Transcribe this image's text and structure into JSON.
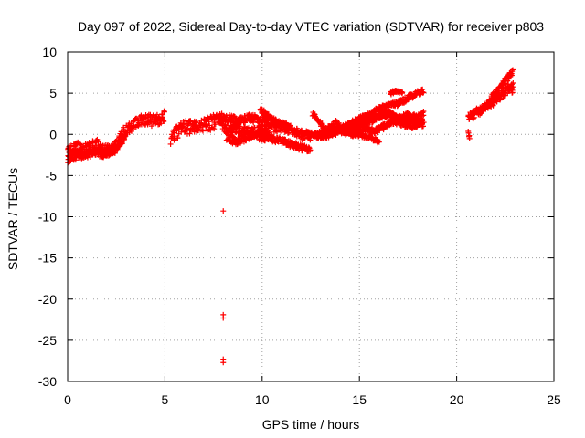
{
  "chart_data": {
    "type": "scatter",
    "title": "Day 097 of 2022, Sidereal Day-to-day VTEC variation (SDTVAR) for receiver p803",
    "xlabel": "GPS time / hours",
    "ylabel": "SDTVAR / TECUs",
    "xlim": [
      0,
      25
    ],
    "ylim": [
      -30,
      10
    ],
    "xticks": [
      0,
      5,
      10,
      15,
      20,
      25
    ],
    "yticks": [
      -30,
      -25,
      -20,
      -15,
      -10,
      -5,
      0,
      5,
      10
    ],
    "grid": true,
    "marker": "+",
    "marker_color": "#ff0000",
    "series": [
      {
        "name": "SDTVAR",
        "tracks": [
          {
            "x": [
              0.0,
              0.5,
              1.0,
              1.5,
              2.0,
              2.4,
              2.8,
              3.2,
              3.6,
              4.0,
              4.5,
              5.0
            ],
            "y": [
              -2.0,
              -1.6,
              -1.8,
              -1.2,
              -2.0,
              -1.6,
              0.0,
              0.8,
              1.6,
              1.8,
              1.6,
              2.2
            ],
            "spread": 1.4
          },
          {
            "x": [
              0.0,
              0.5,
              1.0,
              1.5,
              2.0,
              2.5,
              3.0
            ],
            "y": [
              -3.0,
              -2.6,
              -2.4,
              -2.2,
              -2.4,
              -1.8,
              -0.5
            ],
            "spread": 0.9
          },
          {
            "x": [
              5.3,
              5.6,
              6.0,
              6.5,
              7.0,
              7.5,
              8.0
            ],
            "y": [
              -0.5,
              0.3,
              1.0,
              0.8,
              1.2,
              1.5,
              1.8
            ],
            "spread": 1.8
          },
          {
            "x": [
              7.8,
              8.3,
              8.8,
              9.3,
              9.8,
              10.3
            ],
            "y": [
              1.8,
              2.0,
              1.6,
              2.0,
              1.8,
              1.6
            ],
            "spread": 1.0
          },
          {
            "x": [
              8.0,
              8.5,
              9.0,
              9.5,
              10.0,
              10.5,
              11.0,
              11.5,
              12.0,
              12.5
            ],
            "y": [
              0.5,
              0.8,
              0.4,
              0.2,
              0.6,
              0.8,
              1.0,
              0.6,
              0.0,
              -0.2
            ],
            "spread": 1.2
          },
          {
            "x": [
              8.2,
              8.7,
              9.2,
              9.7,
              10.2
            ],
            "y": [
              -0.5,
              -0.8,
              -0.3,
              0.0,
              -0.5
            ],
            "spread": 1.0
          },
          {
            "x": [
              10.0,
              10.5,
              11.0,
              11.5,
              12.0,
              12.5
            ],
            "y": [
              0.0,
              -0.5,
              -0.8,
              -1.2,
              -1.6,
              -1.8
            ],
            "spread": 0.8
          },
          {
            "x": [
              9.9,
              10.4,
              10.9,
              11.4
            ],
            "y": [
              3.0,
              2.0,
              1.3,
              1.0
            ],
            "spread": 0.6
          },
          {
            "x": [
              12.5,
              13.0,
              13.5,
              14.0,
              14.5,
              15.0,
              15.5,
              16.0,
              16.5,
              17.0,
              17.5,
              18.0,
              18.3
            ],
            "y": [
              0.0,
              -0.2,
              0.2,
              0.6,
              1.2,
              1.8,
              2.4,
              3.0,
              3.4,
              3.8,
              4.4,
              5.0,
              5.2
            ],
            "spread": 0.7
          },
          {
            "x": [
              13.0,
              13.5,
              14.0,
              14.5,
              15.0,
              15.5,
              16.0,
              16.5,
              17.0,
              17.5,
              18.0,
              18.3
            ],
            "y": [
              -0.3,
              0.0,
              0.4,
              0.6,
              1.2,
              1.6,
              2.2,
              2.6,
              1.8,
              2.4,
              2.0,
              2.6
            ],
            "spread": 0.7
          },
          {
            "x": [
              12.8,
              13.3,
              13.8,
              14.3,
              14.8,
              15.3,
              15.8,
              16.3,
              16.8,
              17.3,
              17.8,
              18.3
            ],
            "y": [
              -0.2,
              0.5,
              1.4,
              0.2,
              0.4,
              0.6,
              0.4,
              1.0,
              1.6,
              1.2,
              1.0,
              1.6
            ],
            "spread": 0.7
          },
          {
            "x": [
              14.0,
              14.5,
              15.0,
              15.5,
              16.0,
              16.5,
              17.0,
              17.5,
              18.0,
              18.3
            ],
            "y": [
              0.5,
              1.0,
              1.5,
              1.8,
              2.2,
              2.4,
              2.0,
              1.6,
              1.4,
              1.2
            ],
            "spread": 0.6
          },
          {
            "x": [
              14.5,
              15.0,
              15.5,
              16.0
            ],
            "y": [
              0.0,
              0.0,
              -0.4,
              -0.8
            ],
            "spread": 0.5
          },
          {
            "x": [
              12.6,
              13.0,
              13.3
            ],
            "y": [
              2.5,
              1.3,
              0.4
            ],
            "spread": 0.4
          },
          {
            "x": [
              16.6,
              16.9,
              17.2
            ],
            "y": [
              5.0,
              5.3,
              5.0
            ],
            "spread": 0.3
          },
          {
            "x": [
              20.6,
              21.0,
              21.5,
              22.0,
              22.5,
              22.9
            ],
            "y": [
              2.0,
              2.6,
              3.4,
              4.2,
              5.2,
              6.2
            ],
            "spread": 1.0
          },
          {
            "x": [
              21.8,
              22.2,
              22.6,
              22.9
            ],
            "y": [
              4.5,
              5.6,
              6.8,
              7.6
            ],
            "spread": 0.6
          },
          {
            "x": [
              20.8,
              21.2,
              21.6,
              22.0
            ],
            "y": [
              2.6,
              3.0,
              3.6,
              4.4
            ],
            "spread": 0.5
          },
          {
            "x": [
              20.6,
              20.7
            ],
            "y": [
              0.2,
              -0.5
            ],
            "spread": 0.4
          },
          {
            "x": [
              22.8,
              22.9
            ],
            "y": [
              5.6,
              4.8
            ],
            "spread": 0.4
          }
        ],
        "outliers": [
          {
            "x": 8.0,
            "y": -9.3
          },
          {
            "x": 8.0,
            "y": -21.9
          },
          {
            "x": 8.0,
            "y": -22.3
          },
          {
            "x": 8.0,
            "y": -27.3
          },
          {
            "x": 8.0,
            "y": -27.7
          }
        ]
      }
    ]
  }
}
